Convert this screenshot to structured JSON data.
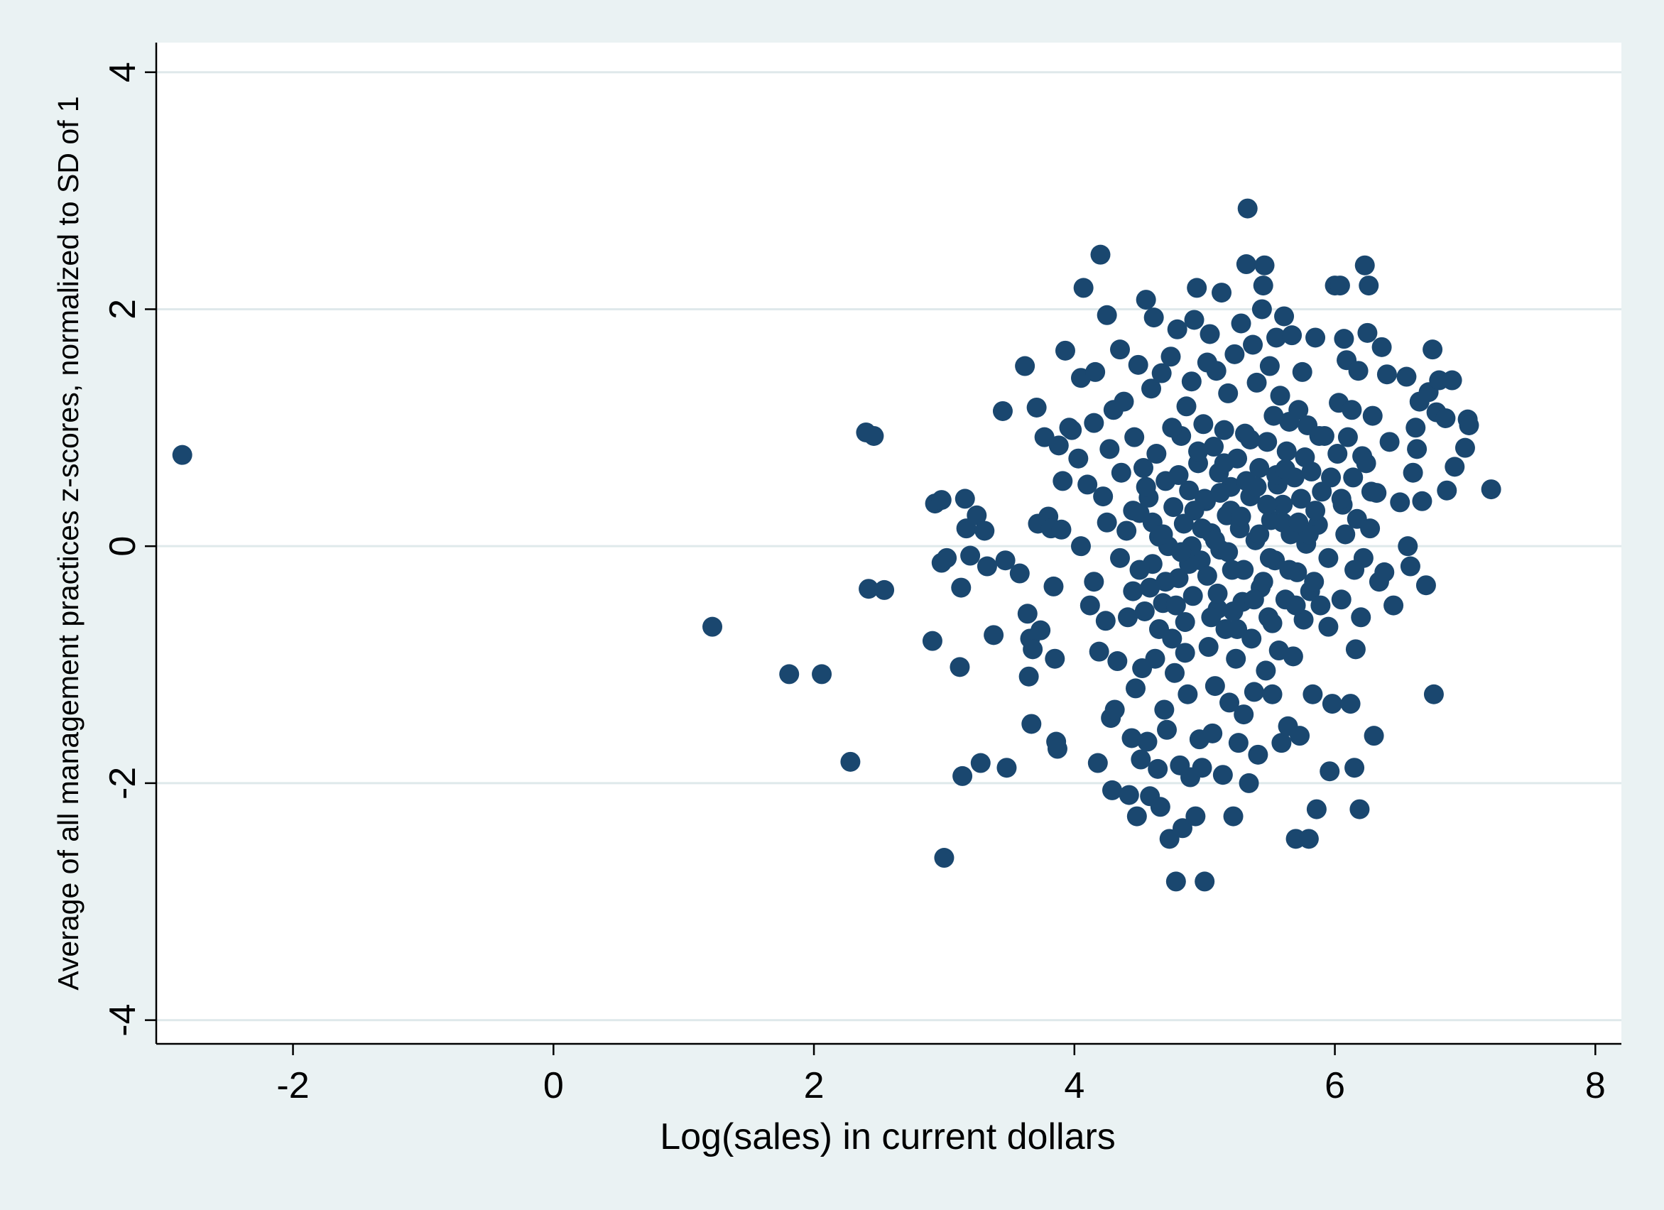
{
  "chart_data": {
    "type": "scatter",
    "title": "",
    "xlabel": "Log(sales) in current dollars",
    "ylabel": "Average of all management practices z-scores, normalized to SD of 1",
    "xlim": [
      -3.05,
      8.2
    ],
    "ylim": [
      -4.2,
      4.25
    ],
    "xticks": [
      -2,
      0,
      2,
      4,
      6,
      8
    ],
    "yticks": [
      -4,
      -2,
      0,
      2,
      4
    ],
    "grid": "horizontal",
    "legend": "none",
    "colors": {
      "background": "#eaf2f3",
      "plot_background": "#ffffff",
      "marker": "#1a476f",
      "grid": "#dfe9eb"
    },
    "points": [
      [
        -2.85,
        0.77
      ],
      [
        1.22,
        -0.68
      ],
      [
        1.81,
        -1.08
      ],
      [
        2.06,
        -1.08
      ],
      [
        2.28,
        -1.82
      ],
      [
        2.4,
        0.96
      ],
      [
        2.46,
        0.93
      ],
      [
        2.42,
        -0.36
      ],
      [
        2.54,
        -0.37
      ],
      [
        2.91,
        -0.8
      ],
      [
        2.93,
        0.36
      ],
      [
        2.98,
        0.39
      ],
      [
        2.98,
        -0.14
      ],
      [
        3.02,
        -0.1
      ],
      [
        3.0,
        -2.63
      ],
      [
        3.12,
        -1.02
      ],
      [
        3.13,
        -0.35
      ],
      [
        3.14,
        -1.94
      ],
      [
        3.16,
        0.4
      ],
      [
        3.17,
        0.15
      ],
      [
        3.2,
        -0.08
      ],
      [
        3.25,
        0.26
      ],
      [
        3.28,
        -1.83
      ],
      [
        3.31,
        0.13
      ],
      [
        3.33,
        -0.17
      ],
      [
        3.38,
        -0.75
      ],
      [
        3.45,
        1.14
      ],
      [
        3.47,
        -0.12
      ],
      [
        3.48,
        -1.87
      ],
      [
        3.58,
        -0.23
      ],
      [
        3.62,
        1.52
      ],
      [
        3.64,
        -0.57
      ],
      [
        3.66,
        -0.78
      ],
      [
        3.65,
        -1.1
      ],
      [
        3.67,
        -1.5
      ],
      [
        3.68,
        -0.87
      ],
      [
        3.71,
        1.17
      ],
      [
        3.72,
        0.19
      ],
      [
        3.74,
        -0.71
      ],
      [
        3.77,
        0.92
      ],
      [
        3.8,
        0.25
      ],
      [
        3.82,
        0.15
      ],
      [
        3.84,
        -0.34
      ],
      [
        3.85,
        -0.95
      ],
      [
        3.86,
        -1.65
      ],
      [
        3.87,
        -1.71
      ],
      [
        3.88,
        0.85
      ],
      [
        3.9,
        0.14
      ],
      [
        3.91,
        0.55
      ],
      [
        3.93,
        1.65
      ],
      [
        3.96,
        1.0
      ],
      [
        3.98,
        0.98
      ],
      [
        4.03,
        0.74
      ],
      [
        4.05,
        1.42
      ],
      [
        4.07,
        2.18
      ],
      [
        4.1,
        0.52
      ],
      [
        4.12,
        -0.5
      ],
      [
        4.15,
        1.04
      ],
      [
        4.16,
        1.47
      ],
      [
        4.18,
        -1.83
      ],
      [
        4.19,
        -0.89
      ],
      [
        4.2,
        2.46
      ],
      [
        4.22,
        0.42
      ],
      [
        4.24,
        -0.63
      ],
      [
        4.25,
        1.95
      ],
      [
        4.27,
        0.82
      ],
      [
        4.28,
        -1.45
      ],
      [
        4.29,
        -2.06
      ],
      [
        4.3,
        1.15
      ],
      [
        4.31,
        -1.38
      ],
      [
        4.33,
        -0.97
      ],
      [
        4.35,
        1.66
      ],
      [
        4.36,
        0.62
      ],
      [
        4.38,
        1.22
      ],
      [
        4.4,
        0.13
      ],
      [
        4.41,
        -0.6
      ],
      [
        4.42,
        -2.1
      ],
      [
        4.44,
        -1.62
      ],
      [
        4.45,
        -0.38
      ],
      [
        4.46,
        0.92
      ],
      [
        4.47,
        -1.2
      ],
      [
        4.48,
        -2.28
      ],
      [
        4.49,
        1.53
      ],
      [
        4.5,
        0.28
      ],
      [
        4.51,
        -1.8
      ],
      [
        4.52,
        -1.03
      ],
      [
        4.53,
        0.66
      ],
      [
        4.54,
        -0.55
      ],
      [
        4.55,
        2.08
      ],
      [
        4.56,
        -1.65
      ],
      [
        4.57,
        0.41
      ],
      [
        4.58,
        -2.11
      ],
      [
        4.59,
        1.33
      ],
      [
        4.6,
        -0.15
      ],
      [
        4.61,
        1.93
      ],
      [
        4.62,
        -0.95
      ],
      [
        4.63,
        0.78
      ],
      [
        4.64,
        -1.88
      ],
      [
        4.65,
        0.08
      ],
      [
        4.66,
        -2.2
      ],
      [
        4.67,
        1.46
      ],
      [
        4.68,
        -0.48
      ],
      [
        4.69,
        -1.38
      ],
      [
        4.7,
        0.55
      ],
      [
        4.71,
        -1.55
      ],
      [
        4.72,
        0.0
      ],
      [
        4.73,
        -2.47
      ],
      [
        4.74,
        1.6
      ],
      [
        4.75,
        -0.78
      ],
      [
        4.76,
        0.33
      ],
      [
        4.77,
        -1.07
      ],
      [
        4.78,
        -2.83
      ],
      [
        4.79,
        1.83
      ],
      [
        4.8,
        -0.27
      ],
      [
        4.81,
        -1.85
      ],
      [
        4.82,
        0.93
      ],
      [
        4.83,
        -2.38
      ],
      [
        4.84,
        0.19
      ],
      [
        4.85,
        -0.64
      ],
      [
        4.86,
        1.18
      ],
      [
        4.87,
        -1.25
      ],
      [
        4.88,
        0.47
      ],
      [
        4.89,
        -1.95
      ],
      [
        4.9,
        1.39
      ],
      [
        4.91,
        -0.42
      ],
      [
        4.92,
        1.91
      ],
      [
        4.93,
        -2.28
      ],
      [
        4.94,
        2.18
      ],
      [
        4.95,
        0.7
      ],
      [
        4.96,
        -1.63
      ],
      [
        4.97,
        -0.12
      ],
      [
        4.98,
        -1.87
      ],
      [
        4.99,
        1.03
      ],
      [
        5.0,
        -2.83
      ],
      [
        5.01,
        0.38
      ],
      [
        5.02,
        1.55
      ],
      [
        5.03,
        -0.85
      ],
      [
        5.04,
        1.79
      ],
      [
        5.05,
        0.11
      ],
      [
        5.06,
        -1.58
      ],
      [
        5.07,
        0.84
      ],
      [
        5.08,
        -1.18
      ],
      [
        5.09,
        1.48
      ],
      [
        5.1,
        -0.53
      ],
      [
        5.11,
        0.62
      ],
      [
        5.12,
        -0.03
      ],
      [
        5.13,
        2.14
      ],
      [
        5.14,
        -1.93
      ],
      [
        5.15,
        0.98
      ],
      [
        5.16,
        -0.7
      ],
      [
        5.17,
        0.26
      ],
      [
        5.18,
        1.29
      ],
      [
        5.19,
        -1.32
      ],
      [
        5.2,
        0.5
      ],
      [
        5.21,
        -0.2
      ],
      [
        5.22,
        -2.28
      ],
      [
        5.23,
        1.62
      ],
      [
        5.24,
        -0.95
      ],
      [
        5.25,
        0.74
      ],
      [
        5.26,
        -1.66
      ],
      [
        5.27,
        0.15
      ],
      [
        5.28,
        1.88
      ],
      [
        5.29,
        -0.47
      ],
      [
        5.3,
        -1.42
      ],
      [
        5.31,
        0.95
      ],
      [
        5.32,
        2.38
      ],
      [
        5.33,
        2.85
      ],
      [
        5.34,
        -2.0
      ],
      [
        5.35,
        0.42
      ],
      [
        5.36,
        -0.78
      ],
      [
        5.37,
        1.7
      ],
      [
        5.38,
        -1.23
      ],
      [
        5.39,
        0.05
      ],
      [
        5.4,
        1.38
      ],
      [
        5.41,
        -1.76
      ],
      [
        5.42,
        0.66
      ],
      [
        5.43,
        -0.35
      ],
      [
        5.44,
        2.0
      ],
      [
        5.45,
        2.2
      ],
      [
        5.46,
        2.37
      ],
      [
        5.47,
        -1.05
      ],
      [
        5.48,
        0.88
      ],
      [
        5.49,
        -0.6
      ],
      [
        5.5,
        1.52
      ],
      [
        5.51,
        0.22
      ],
      [
        5.52,
        -1.25
      ],
      [
        5.53,
        1.1
      ],
      [
        5.54,
        -0.12
      ],
      [
        5.55,
        1.76
      ],
      [
        5.56,
        0.52
      ],
      [
        5.57,
        -0.88
      ],
      [
        5.58,
        1.27
      ],
      [
        5.59,
        -1.66
      ],
      [
        5.6,
        0.35
      ],
      [
        5.61,
        1.94
      ],
      [
        5.62,
        -0.45
      ],
      [
        5.63,
        0.8
      ],
      [
        5.64,
        -1.52
      ],
      [
        5.65,
        1.05
      ],
      [
        5.66,
        0.1
      ],
      [
        5.67,
        1.78
      ],
      [
        5.68,
        -0.93
      ],
      [
        5.69,
        0.58
      ],
      [
        5.7,
        -2.47
      ],
      [
        5.71,
        -0.22
      ],
      [
        5.72,
        1.15
      ],
      [
        5.73,
        -1.6
      ],
      [
        5.74,
        0.4
      ],
      [
        5.75,
        1.47
      ],
      [
        5.76,
        -0.62
      ],
      [
        5.77,
        0.75
      ],
      [
        5.78,
        0.02
      ],
      [
        5.79,
        1.02
      ],
      [
        5.8,
        -2.47
      ],
      [
        5.81,
        -0.38
      ],
      [
        5.82,
        0.63
      ],
      [
        5.83,
        -1.25
      ],
      [
        5.84,
        -0.3
      ],
      [
        5.85,
        1.76
      ],
      [
        5.86,
        -2.22
      ],
      [
        5.87,
        0.18
      ],
      [
        5.88,
        0.93
      ],
      [
        5.89,
        -0.5
      ],
      [
        5.9,
        0.46
      ],
      [
        5.92,
        0.93
      ],
      [
        5.95,
        -0.68
      ],
      [
        5.96,
        -1.9
      ],
      [
        5.97,
        0.58
      ],
      [
        5.98,
        -1.33
      ],
      [
        6.0,
        2.2
      ],
      [
        6.02,
        0.78
      ],
      [
        6.03,
        1.21
      ],
      [
        6.04,
        2.2
      ],
      [
        6.05,
        -0.45
      ],
      [
        6.06,
        0.35
      ],
      [
        6.07,
        1.75
      ],
      [
        6.08,
        0.1
      ],
      [
        6.09,
        1.57
      ],
      [
        6.1,
        0.92
      ],
      [
        6.12,
        -1.33
      ],
      [
        6.13,
        1.15
      ],
      [
        6.14,
        0.58
      ],
      [
        6.15,
        -1.87
      ],
      [
        6.16,
        -0.87
      ],
      [
        6.17,
        0.23
      ],
      [
        6.18,
        1.48
      ],
      [
        6.19,
        -2.22
      ],
      [
        6.2,
        -0.6
      ],
      [
        6.21,
        0.76
      ],
      [
        6.22,
        -0.1
      ],
      [
        6.23,
        2.37
      ],
      [
        6.24,
        0.7
      ],
      [
        6.25,
        1.8
      ],
      [
        6.26,
        2.2
      ],
      [
        6.27,
        0.15
      ],
      [
        6.28,
        0.46
      ],
      [
        6.29,
        1.1
      ],
      [
        6.3,
        -1.6
      ],
      [
        6.32,
        0.45
      ],
      [
        6.34,
        -0.3
      ],
      [
        6.36,
        1.68
      ],
      [
        6.38,
        -0.22
      ],
      [
        6.4,
        1.45
      ],
      [
        6.42,
        0.88
      ],
      [
        6.45,
        -0.5
      ],
      [
        6.5,
        0.37
      ],
      [
        6.55,
        1.43
      ],
      [
        6.56,
        0.0
      ],
      [
        6.58,
        -0.17
      ],
      [
        6.6,
        0.62
      ],
      [
        6.62,
        1.0
      ],
      [
        6.63,
        0.82
      ],
      [
        6.65,
        1.22
      ],
      [
        6.67,
        0.38
      ],
      [
        6.7,
        -0.33
      ],
      [
        6.72,
        1.3
      ],
      [
        6.75,
        1.66
      ],
      [
        6.76,
        -1.25
      ],
      [
        6.78,
        1.13
      ],
      [
        6.8,
        1.4
      ],
      [
        6.85,
        1.08
      ],
      [
        6.86,
        0.47
      ],
      [
        6.9,
        1.4
      ],
      [
        6.92,
        0.67
      ],
      [
        7.0,
        0.83
      ],
      [
        7.02,
        1.07
      ],
      [
        7.03,
        1.02
      ],
      [
        7.2,
        0.48
      ],
      [
        4.55,
        0.5
      ],
      [
        4.6,
        0.2
      ],
      [
        4.7,
        -0.3
      ],
      [
        4.8,
        0.6
      ],
      [
        4.9,
        0.0
      ],
      [
        5.0,
        0.4
      ],
      [
        5.1,
        -0.4
      ],
      [
        5.2,
        0.3
      ],
      [
        5.3,
        -0.2
      ],
      [
        5.4,
        0.5
      ],
      [
        5.5,
        -0.1
      ],
      [
        5.6,
        0.2
      ],
      [
        5.7,
        -0.5
      ],
      [
        5.8,
        0.1
      ],
      [
        4.65,
        -0.7
      ],
      [
        4.75,
        1.0
      ],
      [
        4.85,
        -0.9
      ],
      [
        4.95,
        0.8
      ],
      [
        5.05,
        -0.6
      ],
      [
        5.15,
        0.7
      ],
      [
        5.25,
        -0.7
      ],
      [
        5.35,
        0.9
      ],
      [
        5.45,
        -0.3
      ],
      [
        5.55,
        0.6
      ],
      [
        5.65,
        -0.2
      ],
      [
        4.5,
        -0.2
      ],
      [
        4.45,
        0.3
      ],
      [
        4.35,
        -0.1
      ],
      [
        4.25,
        0.2
      ],
      [
        4.15,
        -0.3
      ],
      [
        4.05,
        0.0
      ],
      [
        5.85,
        0.3
      ],
      [
        5.95,
        -0.1
      ],
      [
        6.05,
        0.4
      ],
      [
        6.15,
        -0.2
      ],
      [
        4.88,
        -0.15
      ],
      [
        4.98,
        0.15
      ],
      [
        5.08,
        0.05
      ],
      [
        5.18,
        -0.05
      ],
      [
        5.28,
        0.25
      ],
      [
        5.38,
        -0.45
      ],
      [
        5.48,
        0.35
      ],
      [
        4.78,
        -0.5
      ],
      [
        4.68,
        0.1
      ],
      [
        4.58,
        -0.35
      ],
      [
        5.02,
        -0.25
      ],
      [
        5.12,
        0.45
      ],
      [
        5.22,
        -0.55
      ],
      [
        5.32,
        0.55
      ],
      [
        5.42,
        0.1
      ],
      [
        5.52,
        -0.65
      ],
      [
        5.62,
        0.65
      ],
      [
        5.72,
        0.2
      ],
      [
        4.92,
        0.3
      ],
      [
        4.82,
        -0.05
      ]
    ]
  }
}
